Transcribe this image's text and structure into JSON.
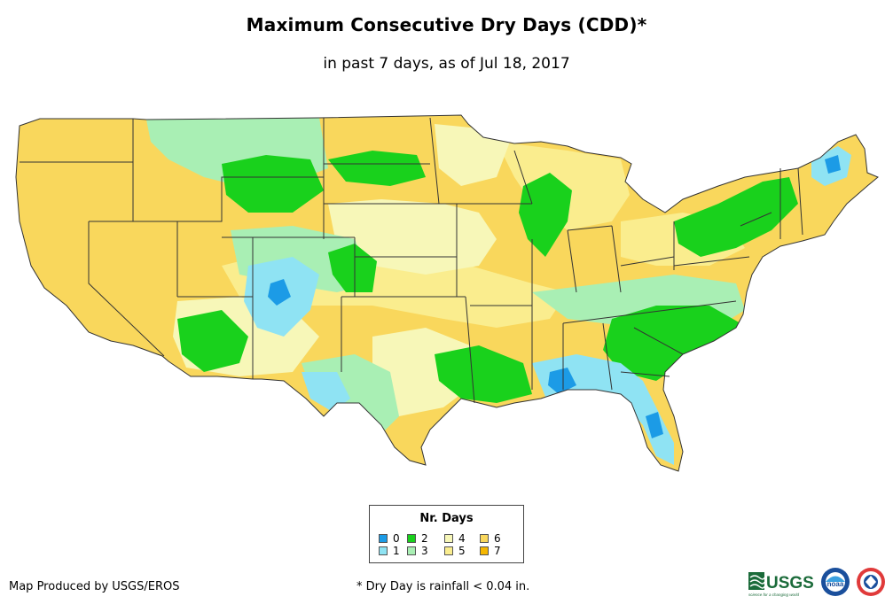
{
  "title": "Maximum Consecutive Dry Days (CDD)*",
  "subtitle": "in past 7 days, as of Jul 18, 2017",
  "legend": {
    "title": "Nr. Days",
    "items": [
      {
        "label": "0",
        "color": "#1c9be6"
      },
      {
        "label": "1",
        "color": "#8fe3f3"
      },
      {
        "label": "2",
        "color": "#19d11c"
      },
      {
        "label": "3",
        "color": "#a9efb4"
      },
      {
        "label": "4",
        "color": "#f7f7b8"
      },
      {
        "label": "5",
        "color": "#faed8e"
      },
      {
        "label": "6",
        "color": "#f9d75c"
      },
      {
        "label": "7",
        "color": "#f5b700"
      }
    ]
  },
  "footer": {
    "credit": "Map Produced by USGS/EROS",
    "note": "* Dry Day is rainfall < 0.04 in."
  },
  "logos": {
    "usgs": "USGS",
    "usgs_tagline": "science for a changing world",
    "noaa": "noaa"
  }
}
